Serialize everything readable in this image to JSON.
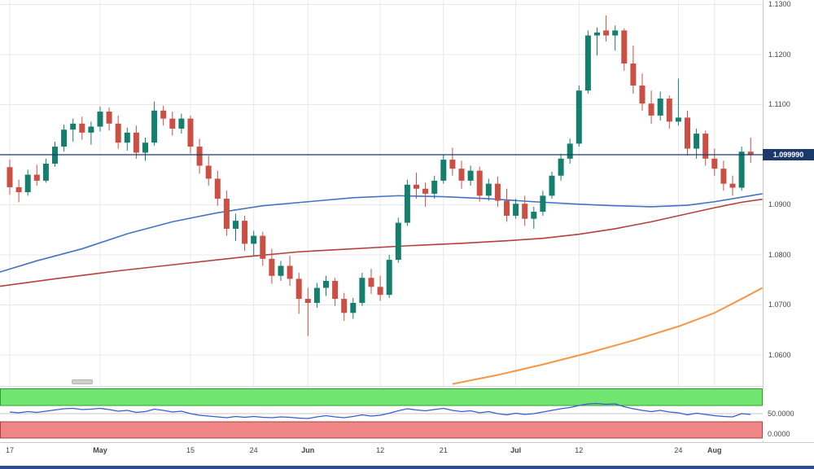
{
  "chart_data": {
    "type": "candlestick",
    "current_price": {
      "label": "1.099990",
      "value": 1.09999
    },
    "y_axis": {
      "ticks": [
        {
          "label": "1.1300",
          "value": 1.13
        },
        {
          "label": "1.1200",
          "value": 1.12
        },
        {
          "label": "1.1100",
          "value": 1.11
        },
        {
          "label": "1.0900",
          "value": 1.09
        },
        {
          "label": "1.0800",
          "value": 1.08
        },
        {
          "label": "1.0700",
          "value": 1.07
        },
        {
          "label": "1.0600",
          "value": 1.06
        }
      ],
      "gridlines": [
        1.13,
        1.12,
        1.11,
        1.1,
        1.09,
        1.08,
        1.07,
        1.06
      ],
      "range": [
        1.054,
        1.131
      ]
    },
    "x_axis": {
      "labels": [
        {
          "label": "17",
          "i": 0
        },
        {
          "label": "May",
          "i": 10
        },
        {
          "label": "15",
          "i": 20
        },
        {
          "label": "24",
          "i": 27
        },
        {
          "label": "Jun",
          "i": 33
        },
        {
          "label": "12",
          "i": 41
        },
        {
          "label": "21",
          "i": 48
        },
        {
          "label": "Jul",
          "i": 56
        },
        {
          "label": "12",
          "i": 63
        },
        {
          "label": "24",
          "i": 74
        },
        {
          "label": "Aug",
          "i": 78
        }
      ]
    },
    "candles": [
      [
        1.0975,
        1.099,
        1.092,
        1.0935
      ],
      [
        1.0935,
        1.095,
        1.0905,
        1.0925
      ],
      [
        1.0925,
        1.097,
        1.0918,
        1.096
      ],
      [
        1.096,
        1.098,
        1.0938,
        1.0948
      ],
      [
        1.0948,
        1.0992,
        1.0944,
        1.0982
      ],
      [
        1.0982,
        1.1026,
        1.0976,
        1.1016
      ],
      [
        1.1016,
        1.106,
        1.1006,
        1.105
      ],
      [
        1.105,
        1.1072,
        1.1026,
        1.1062
      ],
      [
        1.1062,
        1.1076,
        1.103,
        1.1044
      ],
      [
        1.1044,
        1.1066,
        1.102,
        1.1056
      ],
      [
        1.1056,
        1.1096,
        1.1046,
        1.1086
      ],
      [
        1.1086,
        1.1094,
        1.1048,
        1.1062
      ],
      [
        1.1062,
        1.1078,
        1.1012,
        1.1024
      ],
      [
        1.1024,
        1.1054,
        1.1008,
        1.1044
      ],
      [
        1.1044,
        1.1058,
        1.0992,
        1.1004
      ],
      [
        1.1004,
        1.1034,
        1.0988,
        1.1024
      ],
      [
        1.1024,
        1.1106,
        1.1018,
        1.1088
      ],
      [
        1.1088,
        1.1098,
        1.1058,
        1.1072
      ],
      [
        1.1072,
        1.1086,
        1.1038,
        1.1052
      ],
      [
        1.1052,
        1.1082,
        1.1042,
        1.1072
      ],
      [
        1.1072,
        1.1078,
        1.1002,
        1.1016
      ],
      [
        1.1016,
        1.1032,
        1.0962,
        1.0978
      ],
      [
        1.0978,
        1.0998,
        1.0938,
        1.0952
      ],
      [
        1.0952,
        1.0968,
        1.0898,
        1.0912
      ],
      [
        1.0912,
        1.0928,
        1.0838,
        1.0852
      ],
      [
        1.0852,
        1.0882,
        1.0828,
        1.0868
      ],
      [
        1.0868,
        1.0878,
        1.0808,
        1.0822
      ],
      [
        1.0822,
        1.0848,
        1.0798,
        1.0838
      ],
      [
        1.0838,
        1.0846,
        1.0778,
        1.0792
      ],
      [
        1.0792,
        1.0812,
        1.0742,
        1.0758
      ],
      [
        1.0758,
        1.0788,
        1.0748,
        1.0778
      ],
      [
        1.0778,
        1.0798,
        1.0738,
        1.0752
      ],
      [
        1.0752,
        1.0764,
        1.0682,
        1.0712
      ],
      [
        1.0712,
        1.0734,
        1.0638,
        1.0704
      ],
      [
        1.0704,
        1.0744,
        1.0694,
        1.0734
      ],
      [
        1.0734,
        1.0758,
        1.0718,
        1.0748
      ],
      [
        1.0748,
        1.0754,
        1.0698,
        1.0712
      ],
      [
        1.0712,
        1.0724,
        1.0668,
        1.0684
      ],
      [
        1.0684,
        1.0714,
        1.0672,
        1.0704
      ],
      [
        1.0704,
        1.0764,
        1.0698,
        1.0754
      ],
      [
        1.0754,
        1.0772,
        1.0722,
        1.0736
      ],
      [
        1.0736,
        1.0758,
        1.0708,
        1.072
      ],
      [
        1.072,
        1.08,
        1.0714,
        1.079
      ],
      [
        1.079,
        1.0874,
        1.0784,
        1.0864
      ],
      [
        1.0864,
        1.095,
        1.0858,
        1.094
      ],
      [
        1.094,
        1.0964,
        1.0912,
        1.0932
      ],
      [
        1.0932,
        1.0944,
        1.0896,
        1.0922
      ],
      [
        1.0922,
        1.0958,
        1.0912,
        1.0948
      ],
      [
        1.0948,
        1.1,
        1.0942,
        1.099
      ],
      [
        1.099,
        1.1014,
        1.0958,
        1.0972
      ],
      [
        1.0972,
        1.0988,
        1.0932,
        1.0948
      ],
      [
        1.0948,
        1.0978,
        1.0938,
        1.0968
      ],
      [
        1.0968,
        1.0976,
        1.0906,
        1.0918
      ],
      [
        1.0918,
        1.0952,
        1.0908,
        1.0942
      ],
      [
        1.0942,
        1.0956,
        1.0896,
        1.0908
      ],
      [
        1.0908,
        1.0932,
        1.0866,
        1.0878
      ],
      [
        1.0878,
        1.0912,
        1.0872,
        1.0902
      ],
      [
        1.0902,
        1.0918,
        1.0858,
        1.0872
      ],
      [
        1.0872,
        1.0896,
        1.0852,
        1.0886
      ],
      [
        1.0886,
        1.0928,
        1.0878,
        1.0918
      ],
      [
        1.0918,
        1.0966,
        1.0912,
        1.0958
      ],
      [
        1.0958,
        1.1002,
        1.0948,
        1.0992
      ],
      [
        1.0992,
        1.1032,
        1.0982,
        1.1022
      ],
      [
        1.1022,
        1.1138,
        1.1016,
        1.1128
      ],
      [
        1.1128,
        1.1248,
        1.1122,
        1.1238
      ],
      [
        1.1238,
        1.1254,
        1.1198,
        1.1244
      ],
      [
        1.1248,
        1.1278,
        1.1226,
        1.1238
      ],
      [
        1.1238,
        1.1258,
        1.1208,
        1.1248
      ],
      [
        1.1248,
        1.1252,
        1.1168,
        1.1182
      ],
      [
        1.1182,
        1.1218,
        1.1122,
        1.1138
      ],
      [
        1.1138,
        1.1162,
        1.1088,
        1.1102
      ],
      [
        1.1102,
        1.1128,
        1.1062,
        1.1078
      ],
      [
        1.1078,
        1.1126,
        1.1068,
        1.1112
      ],
      [
        1.1112,
        1.1118,
        1.1052,
        1.1066
      ],
      [
        1.1066,
        1.1152,
        1.1058,
        1.1074
      ],
      [
        1.1074,
        1.1088,
        1.0998,
        1.1012
      ],
      [
        1.1012,
        1.1052,
        1.0992,
        1.1042
      ],
      [
        1.1042,
        1.1048,
        1.0978,
        1.0992
      ],
      [
        1.0992,
        1.1012,
        1.0958,
        1.0972
      ],
      [
        1.0972,
        1.0988,
        1.0928,
        1.0942
      ],
      [
        1.0942,
        1.0958,
        1.0918,
        1.0934
      ],
      [
        1.0934,
        1.1016,
        1.0928,
        1.1006
      ],
      [
        1.1006,
        1.1034,
        1.0984,
        1.0999
      ]
    ],
    "overlays": {
      "ma_fast": [
        [
          -1.2,
          1.0765
        ],
        [
          3,
          1.0788
        ],
        [
          8,
          1.0812
        ],
        [
          13,
          1.0842
        ],
        [
          18,
          1.0866
        ],
        [
          23,
          1.0884
        ],
        [
          28,
          1.0898
        ],
        [
          33,
          1.0906
        ],
        [
          38,
          1.0914
        ],
        [
          43,
          1.0918
        ],
        [
          48,
          1.0916
        ],
        [
          53,
          1.0912
        ],
        [
          58,
          1.0906
        ],
        [
          63,
          1.0901
        ],
        [
          67,
          1.0898
        ],
        [
          71,
          1.0896
        ],
        [
          75,
          1.0899
        ],
        [
          78,
          1.0906
        ],
        [
          81,
          1.0915
        ],
        [
          83.3,
          1.0922
        ]
      ],
      "ma_mid": [
        [
          -1.2,
          1.0737
        ],
        [
          5,
          1.0752
        ],
        [
          12,
          1.0768
        ],
        [
          19,
          1.0782
        ],
        [
          26,
          1.0796
        ],
        [
          32,
          1.0806
        ],
        [
          38,
          1.0812
        ],
        [
          44,
          1.0818
        ],
        [
          50,
          1.0823
        ],
        [
          55,
          1.0828
        ],
        [
          59,
          1.0833
        ],
        [
          63,
          1.0841
        ],
        [
          67,
          1.0852
        ],
        [
          71,
          1.0866
        ],
        [
          75,
          1.0882
        ],
        [
          78,
          1.0894
        ],
        [
          81,
          1.0905
        ],
        [
          83.3,
          1.0911
        ]
      ],
      "ma_slow": [
        [
          49,
          1.0542
        ],
        [
          54,
          1.056
        ],
        [
          59,
          1.0581
        ],
        [
          64,
          1.0604
        ],
        [
          69,
          1.0629
        ],
        [
          74,
          1.0657
        ],
        [
          78,
          1.0684
        ],
        [
          81,
          1.0712
        ],
        [
          83.3,
          1.0734
        ]
      ]
    },
    "oscillator": {
      "values": [
        54,
        52,
        55,
        53,
        56,
        59,
        62,
        63,
        60,
        61,
        63,
        60,
        56,
        58,
        53,
        55,
        61,
        58,
        54,
        56,
        50,
        46,
        44,
        42,
        40,
        43,
        41,
        43,
        41,
        40,
        42,
        41,
        39,
        38,
        42,
        45,
        42,
        40,
        43,
        47,
        44,
        46,
        51,
        57,
        62,
        59,
        57,
        60,
        63,
        58,
        55,
        57,
        52,
        55,
        50,
        47,
        51,
        48,
        50,
        54,
        58,
        62,
        65,
        70,
        74,
        75,
        73,
        74,
        67,
        62,
        58,
        55,
        58,
        54,
        52,
        47,
        51,
        48,
        45,
        43,
        42,
        50,
        48
      ],
      "ticks": [
        {
          "label": "50.0000",
          "value": 50
        },
        {
          "label": "0.0000",
          "value": 0
        }
      ],
      "overbought": 70,
      "oversold": 30
    },
    "colors": {
      "up": "#157f6d",
      "down": "#cc4f44",
      "ma_fast": "#4472c4",
      "ma_mid": "#b5413c",
      "ma_slow": "#f79646",
      "price_line": "#1b3a6b",
      "badge_bg": "#1b3a6b",
      "badge_text": "#ffffff",
      "grid": "#e8e8e8",
      "osc_line": "#3b5bd6",
      "osc_green": "#70e670",
      "osc_green_border": "#2f9e2f",
      "osc_red": "#ef8585",
      "osc_red_border": "#a94442"
    }
  }
}
